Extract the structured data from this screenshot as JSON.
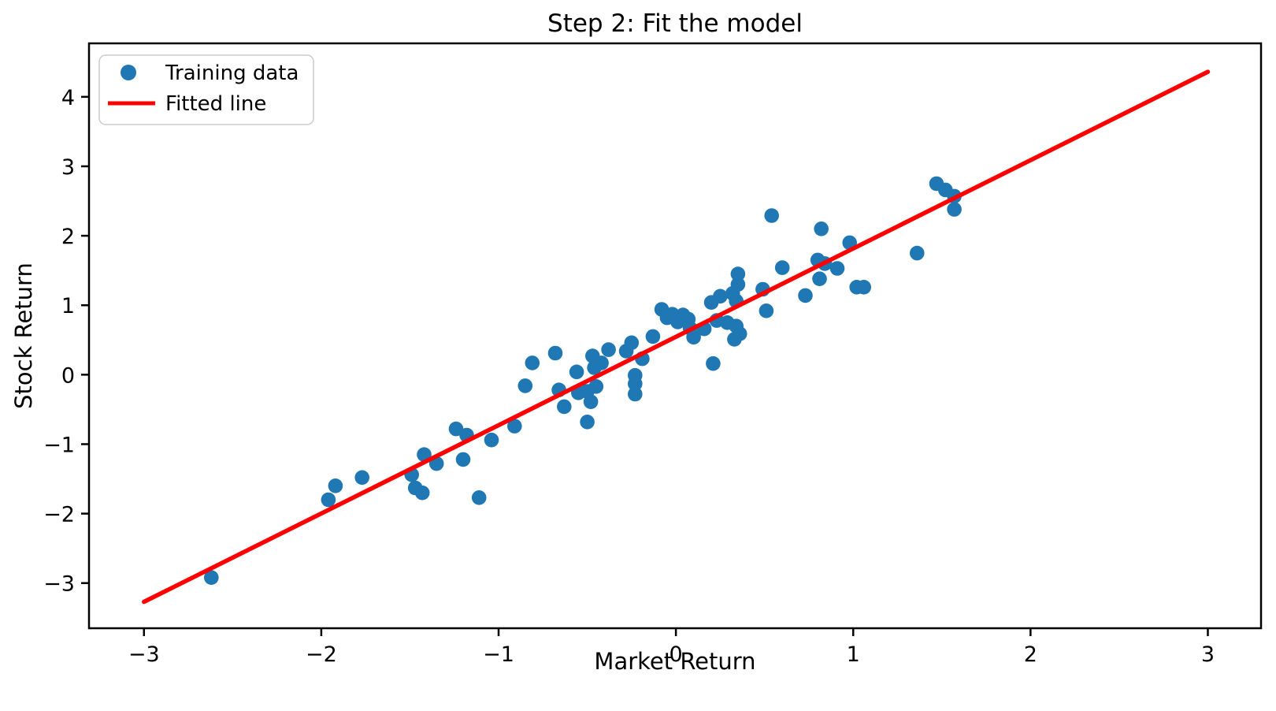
{
  "chart_data": {
    "type": "scatter",
    "title": "Step 2: Fit the model",
    "xlabel": "Market Return",
    "ylabel": "Stock Return",
    "xlim": [
      -3.31,
      3.3
    ],
    "ylim": [
      -3.65,
      4.77
    ],
    "x_ticks": [
      -3,
      -2,
      -1,
      0,
      1,
      2,
      3
    ],
    "y_ticks": [
      -3,
      -2,
      -1,
      0,
      1,
      2,
      3,
      4
    ],
    "grid": false,
    "legend_position": "upper left",
    "series": [
      {
        "name": "Training data",
        "type": "scatter",
        "color": "#1f77b4",
        "points": [
          [
            -2.62,
            -2.92
          ],
          [
            -1.96,
            -1.8
          ],
          [
            -1.92,
            -1.6
          ],
          [
            -1.77,
            -1.48
          ],
          [
            -1.49,
            -1.44
          ],
          [
            -1.47,
            -1.63
          ],
          [
            -1.43,
            -1.7
          ],
          [
            -1.42,
            -1.15
          ],
          [
            -1.35,
            -1.28
          ],
          [
            -1.24,
            -0.78
          ],
          [
            -1.2,
            -1.22
          ],
          [
            -1.18,
            -0.87
          ],
          [
            -1.11,
            -1.77
          ],
          [
            -1.04,
            -0.94
          ],
          [
            -0.91,
            -0.74
          ],
          [
            -0.85,
            -0.16
          ],
          [
            -0.81,
            0.17
          ],
          [
            -0.68,
            0.31
          ],
          [
            -0.66,
            -0.22
          ],
          [
            -0.63,
            -0.46
          ],
          [
            -0.56,
            0.04
          ],
          [
            -0.55,
            -0.26
          ],
          [
            -0.5,
            -0.24
          ],
          [
            -0.5,
            -0.68
          ],
          [
            -0.48,
            -0.39
          ],
          [
            -0.47,
            0.27
          ],
          [
            -0.46,
            0.1
          ],
          [
            -0.45,
            -0.17
          ],
          [
            -0.42,
            0.17
          ],
          [
            -0.38,
            0.36
          ],
          [
            -0.28,
            0.34
          ],
          [
            -0.25,
            0.46
          ],
          [
            -0.23,
            -0.01
          ],
          [
            -0.23,
            -0.13
          ],
          [
            -0.23,
            -0.28
          ],
          [
            -0.19,
            0.23
          ],
          [
            -0.13,
            0.55
          ],
          [
            -0.08,
            0.94
          ],
          [
            -0.05,
            0.82
          ],
          [
            -0.02,
            0.87
          ],
          [
            0.01,
            0.76
          ],
          [
            0.04,
            0.86
          ],
          [
            0.07,
            0.8
          ],
          [
            0.08,
            0.67
          ],
          [
            0.1,
            0.54
          ],
          [
            0.16,
            0.66
          ],
          [
            0.2,
            1.04
          ],
          [
            0.21,
            0.16
          ],
          [
            0.23,
            0.78
          ],
          [
            0.25,
            1.13
          ],
          [
            0.29,
            0.75
          ],
          [
            0.32,
            1.17
          ],
          [
            0.33,
            0.51
          ],
          [
            0.34,
            0.7
          ],
          [
            0.34,
            1.06
          ],
          [
            0.35,
            1.3
          ],
          [
            0.35,
            1.45
          ],
          [
            0.36,
            0.59
          ],
          [
            0.49,
            1.23
          ],
          [
            0.51,
            0.92
          ],
          [
            0.54,
            2.29
          ],
          [
            0.6,
            1.54
          ],
          [
            0.73,
            1.14
          ],
          [
            0.8,
            1.65
          ],
          [
            0.81,
            1.38
          ],
          [
            0.82,
            2.1
          ],
          [
            0.84,
            1.6
          ],
          [
            0.91,
            1.53
          ],
          [
            0.98,
            1.9
          ],
          [
            1.02,
            1.26
          ],
          [
            1.06,
            1.26
          ],
          [
            1.36,
            1.75
          ],
          [
            1.47,
            2.75
          ],
          [
            1.52,
            2.66
          ],
          [
            1.57,
            2.57
          ],
          [
            1.57,
            2.38
          ]
        ]
      },
      {
        "name": "Fitted line",
        "type": "line",
        "color": "#ff0000",
        "points": [
          [
            -3.0,
            -3.27
          ],
          [
            3.0,
            4.36
          ]
        ]
      }
    ],
    "legend": {
      "entries": [
        {
          "label": "Training data",
          "marker": "circle",
          "color": "#1f77b4"
        },
        {
          "label": "Fitted line",
          "marker": "line",
          "color": "#ff0000"
        }
      ]
    }
  }
}
